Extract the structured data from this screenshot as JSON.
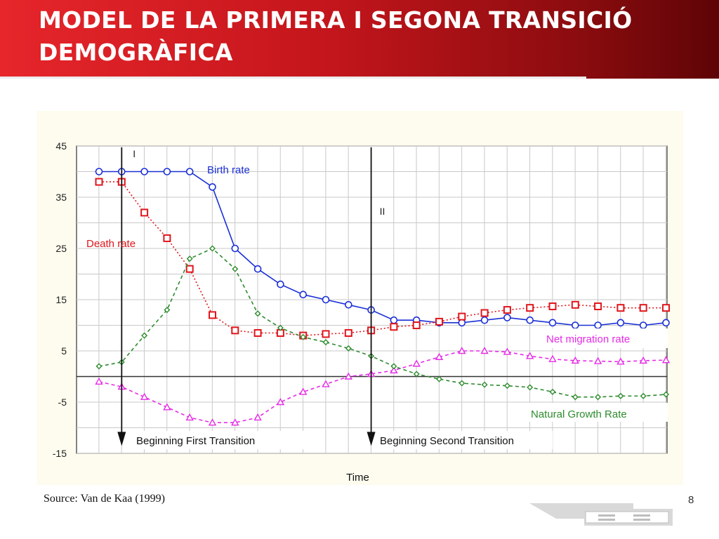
{
  "slide": {
    "title": "MODEL DE LA PRIMERA I SEGONA TRANSICIÓ DEMOGRÀFICA",
    "source": "Source: Van de Kaa (1999)",
    "page_number": "8",
    "accent_color": "#c4161c"
  },
  "chart_data": {
    "type": "line",
    "title": "",
    "xlabel": "Time",
    "ylabel": "",
    "ylim": [
      -15,
      45
    ],
    "yticks": [
      45,
      35,
      25,
      15,
      5,
      -5,
      -15
    ],
    "grid": true,
    "x": [
      1,
      2,
      3,
      4,
      5,
      6,
      7,
      8,
      9,
      10,
      11,
      12,
      13,
      14,
      15,
      16,
      17,
      18,
      19,
      20,
      21,
      22,
      23,
      24,
      25,
      26
    ],
    "series": [
      {
        "name": "Birth rate",
        "color": "#1a2fd6",
        "marker": "circle",
        "dash": "solid",
        "values": [
          40,
          40,
          40,
          40,
          40,
          37,
          25,
          21,
          18,
          16,
          15,
          14,
          13,
          11,
          11,
          10.5,
          10.5,
          11,
          11.5,
          11,
          10.5,
          10,
          10,
          10.5,
          10,
          10.5
        ]
      },
      {
        "name": "Death rate",
        "color": "#e0161c",
        "marker": "square",
        "dash": "dotted",
        "values": [
          38,
          38,
          32,
          27,
          21,
          12,
          9,
          8.5,
          8.5,
          8,
          8.3,
          8.5,
          9,
          9.7,
          10,
          10.7,
          11.7,
          12.4,
          13,
          13.4,
          13.7,
          14,
          13.7,
          13.4,
          13.4,
          13.4
        ]
      },
      {
        "name": "Net migration rate",
        "color": "#e62be6",
        "marker": "triangle",
        "dash": "dashed",
        "values": [
          -1,
          -2,
          -4,
          -6,
          -8,
          -9,
          -9,
          -8,
          -5,
          -3,
          -1.5,
          0,
          0.5,
          1.2,
          2.5,
          3.8,
          5,
          5,
          4.8,
          4,
          3.4,
          3.1,
          3,
          2.9,
          3.1,
          3.2
        ]
      },
      {
        "name": "Natural Growth Rate",
        "color": "#2e8b2e",
        "marker": "diamond",
        "dash": "dashed",
        "values": [
          2,
          2.8,
          8,
          13,
          23,
          25,
          21,
          12.3,
          9.5,
          7.7,
          6.7,
          5.5,
          4,
          2,
          0.5,
          -0.5,
          -1.3,
          -1.6,
          -1.8,
          -2.1,
          -3,
          -4,
          -4,
          -3.8,
          -3.8,
          -3.5
        ]
      }
    ],
    "labels": {
      "birth": "Birth rate",
      "death": "Death rate",
      "migration": "Net migration rate",
      "natural": "Natural Growth Rate",
      "marker_first": "I",
      "marker_second": "II",
      "first_transition": "Beginning First Transition",
      "second_transition": "Beginning Second Transition"
    },
    "transition_x": [
      2,
      13
    ]
  }
}
